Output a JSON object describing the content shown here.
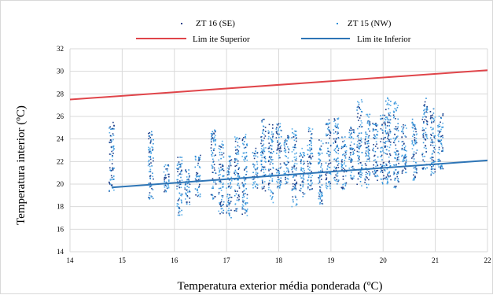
{
  "chart_data": {
    "type": "scatter",
    "title": "",
    "xlabel": "Temperatura exterior média ponderada (ºC)",
    "ylabel": "Temperatura interior (ºC)",
    "xlim": [
      14,
      22
    ],
    "ylim": [
      14,
      32
    ],
    "x_ticks": [
      "14",
      "15",
      "16",
      "17",
      "18",
      "19",
      "20",
      "21",
      "22"
    ],
    "y_ticks": [
      "14",
      "16",
      "18",
      "20",
      "22",
      "24",
      "26",
      "28",
      "30",
      "32"
    ],
    "grid": true,
    "legend_position": "top",
    "colors": {
      "zt16": "#1f3f8a",
      "zt15": "#2f8fd8",
      "upper": "#e0454a",
      "lower": "#2e75b6"
    },
    "legend": {
      "zt16": "ZT 16 (SE)",
      "zt15": "ZT 15 (NW)",
      "upper": "Lim ite Superior",
      "lower": "Lim ite Inferior"
    },
    "limit_lines": [
      {
        "key": "upper",
        "x": [
          14,
          22
        ],
        "y": [
          27.5,
          30.1
        ]
      },
      {
        "key": "lower",
        "x": [
          14.8,
          22
        ],
        "y": [
          19.7,
          22.1
        ]
      }
    ],
    "scatter_groups": [
      {
        "x": 14.8,
        "ymin": 19.3,
        "ymax": 25.6
      },
      {
        "x": 15.55,
        "ymin": 18.5,
        "ymax": 24.8
      },
      {
        "x": 15.85,
        "ymin": 19.2,
        "ymax": 21.8
      },
      {
        "x": 16.1,
        "ymin": 17.2,
        "ymax": 22.6
      },
      {
        "x": 16.25,
        "ymin": 18.2,
        "ymax": 21.3
      },
      {
        "x": 16.45,
        "ymin": 18.8,
        "ymax": 22.6
      },
      {
        "x": 16.75,
        "ymin": 18.6,
        "ymax": 24.8
      },
      {
        "x": 16.9,
        "ymin": 17.3,
        "ymax": 23.8
      },
      {
        "x": 17.05,
        "ymin": 17.0,
        "ymax": 22.8
      },
      {
        "x": 17.2,
        "ymin": 17.5,
        "ymax": 24.2
      },
      {
        "x": 17.35,
        "ymin": 17.1,
        "ymax": 24.6
      },
      {
        "x": 17.55,
        "ymin": 19.6,
        "ymax": 23.2
      },
      {
        "x": 17.7,
        "ymin": 19.4,
        "ymax": 25.8
      },
      {
        "x": 17.85,
        "ymin": 18.3,
        "ymax": 25.4
      },
      {
        "x": 18.0,
        "ymin": 19.5,
        "ymax": 25.5
      },
      {
        "x": 18.15,
        "ymin": 19.9,
        "ymax": 24.4
      },
      {
        "x": 18.3,
        "ymin": 18.0,
        "ymax": 25.1
      },
      {
        "x": 18.45,
        "ymin": 18.9,
        "ymax": 23.2
      },
      {
        "x": 18.6,
        "ymin": 19.5,
        "ymax": 25.0
      },
      {
        "x": 18.8,
        "ymin": 18.2,
        "ymax": 24.0
      },
      {
        "x": 18.95,
        "ymin": 19.6,
        "ymax": 25.7
      },
      {
        "x": 19.1,
        "ymin": 20.0,
        "ymax": 26.0
      },
      {
        "x": 19.25,
        "ymin": 19.2,
        "ymax": 24.2
      },
      {
        "x": 19.4,
        "ymin": 20.3,
        "ymax": 25.1
      },
      {
        "x": 19.55,
        "ymin": 19.8,
        "ymax": 27.5
      },
      {
        "x": 19.7,
        "ymin": 19.5,
        "ymax": 26.3
      },
      {
        "x": 19.85,
        "ymin": 20.1,
        "ymax": 25.4
      },
      {
        "x": 20.0,
        "ymin": 19.8,
        "ymax": 26.2
      },
      {
        "x": 20.1,
        "ymin": 20.0,
        "ymax": 27.7
      },
      {
        "x": 20.25,
        "ymin": 19.6,
        "ymax": 27.3
      },
      {
        "x": 20.4,
        "ymin": 20.8,
        "ymax": 25.3
      },
      {
        "x": 20.6,
        "ymin": 20.2,
        "ymax": 25.8
      },
      {
        "x": 20.8,
        "ymin": 21.3,
        "ymax": 27.6
      },
      {
        "x": 20.95,
        "ymin": 20.8,
        "ymax": 26.7
      },
      {
        "x": 21.1,
        "ymin": 21.3,
        "ymax": 26.5
      }
    ]
  }
}
